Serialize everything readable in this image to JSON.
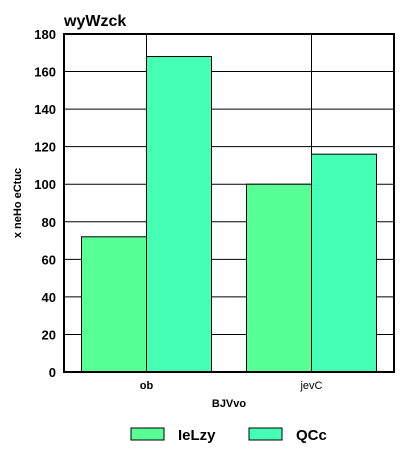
{
  "chart_data": {
    "type": "bar",
    "title": "wyWzck",
    "xlabel": "BJVvo",
    "ylabel": "x neHo eCtuc",
    "categories": [
      "ob",
      "jevC"
    ],
    "series": [
      {
        "name": "IeLzy",
        "values": [
          72,
          100
        ],
        "color": "#58ff95"
      },
      {
        "name": "QCc",
        "values": [
          168,
          116
        ],
        "color": "#44ffb4"
      }
    ],
    "ylim": [
      0,
      180
    ],
    "yticks": [
      0,
      20,
      40,
      60,
      80,
      100,
      120,
      140,
      160,
      180
    ],
    "grid": true,
    "legend_position": "bottom"
  }
}
